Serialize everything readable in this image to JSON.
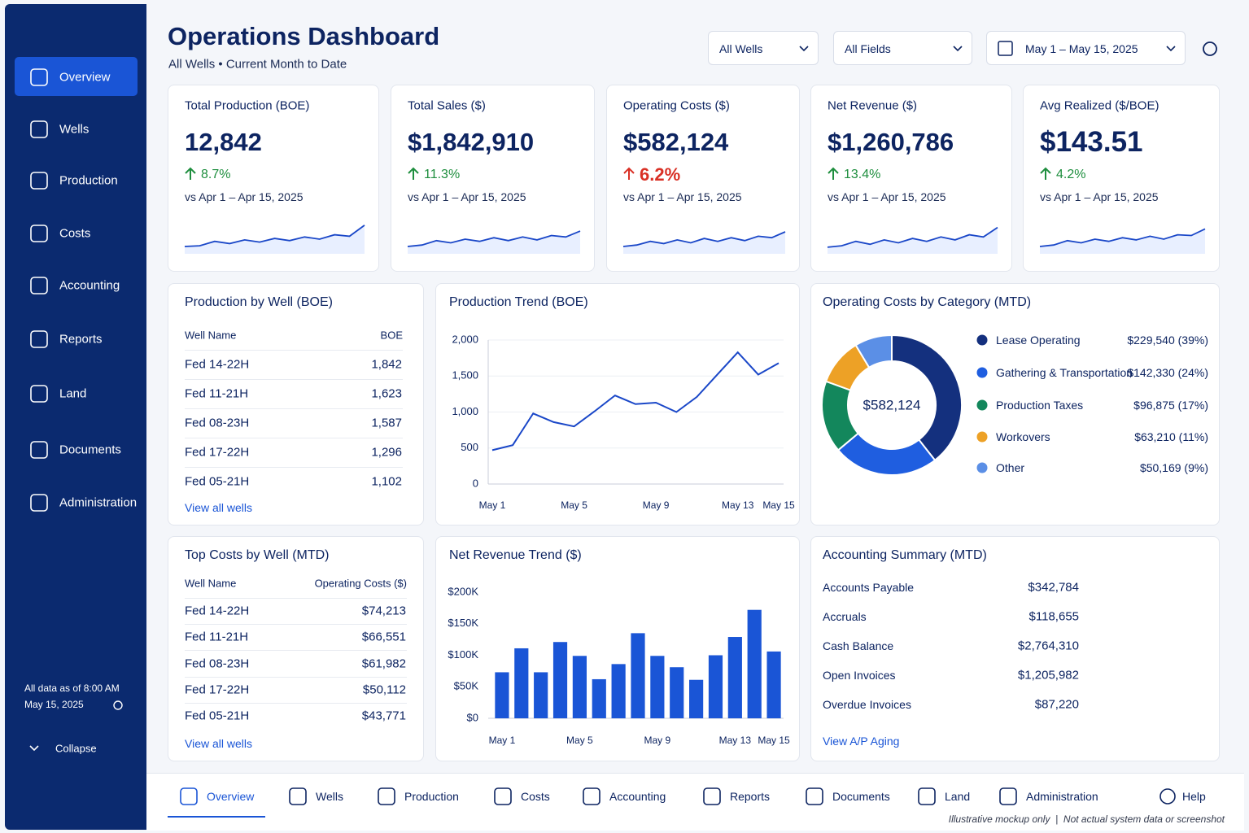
{
  "sidebar": {
    "nav": [
      "Overview",
      "Wells",
      "Production",
      "Costs",
      "Accounting",
      "Reports",
      "Land",
      "Documents",
      "Administration"
    ],
    "status": [
      "All data as of 8:00 AM",
      "May 15, 2025"
    ],
    "collapse": "Collapse"
  },
  "header": {
    "title": "Operations Dashboard",
    "subtitle": "All Wells • Current Month to Date",
    "filters": [
      "All Wells",
      "All Fields",
      "May 1 – May 15, 2025"
    ]
  },
  "kpis": [
    {
      "label": "Total Production (BOE)",
      "value": "12,842",
      "change": "8.7%",
      "change_color": "#1e8e3e",
      "comparison": "vs Apr 1 – Apr 15, 2025",
      "spark": [
        20,
        22,
        34,
        28,
        38,
        32,
        42,
        36,
        46,
        40,
        52,
        48,
        78
      ]
    },
    {
      "label": "Total Sales ($)",
      "value": "$1,842,910",
      "change": "11.3%",
      "change_color": "#1e8e3e",
      "comparison": "vs Apr 1 – Apr 15, 2025",
      "spark": [
        20,
        24,
        36,
        30,
        40,
        34,
        44,
        36,
        46,
        38,
        50,
        46,
        62
      ]
    },
    {
      "label": "Operating Costs ($)",
      "value": "$582,124",
      "change": "6.2%",
      "change_color": "#d93025",
      "comparison": "vs Apr 1 – Apr 15, 2025",
      "spark": [
        20,
        24,
        34,
        28,
        38,
        30,
        42,
        34,
        44,
        36,
        48,
        44,
        60
      ]
    },
    {
      "label": "Net Revenue ($)",
      "value": "$1,260,786",
      "change": "13.4%",
      "change_color": "#1e8e3e",
      "comparison": "vs Apr 1 – Apr 15, 2025",
      "spark": [
        18,
        22,
        34,
        26,
        38,
        30,
        42,
        34,
        46,
        38,
        52,
        46,
        72
      ]
    },
    {
      "label": "Avg Realized ($/BOE)",
      "value": "$143.51",
      "change": "4.2%",
      "change_color": "#1e8e3e",
      "comparison": "vs Apr 1 – Apr 15, 2025",
      "spark": [
        20,
        24,
        36,
        30,
        40,
        34,
        44,
        38,
        48,
        40,
        52,
        50,
        68
      ]
    }
  ],
  "production_by_well": {
    "title": "Production by Well (BOE)",
    "columns": [
      "Well Name",
      "BOE"
    ],
    "rows": [
      [
        "Fed 14-22H",
        "1,842"
      ],
      [
        "Fed 11-21H",
        "1,623"
      ],
      [
        "Fed 08-23H",
        "1,587"
      ],
      [
        "Fed 17-22H",
        "1,296"
      ],
      [
        "Fed 05-21H",
        "1,102"
      ]
    ],
    "link": "View all wells"
  },
  "top_costs": {
    "title": "Top Costs by Well (MTD)",
    "columns": [
      "Well Name",
      "Operating Costs ($)"
    ],
    "rows": [
      [
        "Fed 14-22H",
        "$74,213"
      ],
      [
        "Fed 11-21H",
        "$66,551"
      ],
      [
        "Fed 08-23H",
        "$61,982"
      ],
      [
        "Fed 17-22H",
        "$50,112"
      ],
      [
        "Fed 05-21H",
        "$43,771"
      ]
    ],
    "link": "View all wells"
  },
  "accounting_summary": {
    "title": "Accounting Summary (MTD)",
    "rows": [
      [
        "Accounts Payable",
        "$342,784"
      ],
      [
        "Accruals",
        "$118,655"
      ],
      [
        "Cash Balance",
        "$2,764,310"
      ],
      [
        "Open Invoices",
        "$1,205,982"
      ],
      [
        "Overdue Invoices",
        "$87,220"
      ]
    ],
    "link": "View A/P Aging"
  },
  "chart_data": [
    {
      "type": "line",
      "title": "Production Trend (BOE)",
      "color": "#1a47c8",
      "grid": true,
      "categories": [
        "May 1",
        null,
        null,
        null,
        "May 5",
        null,
        null,
        null,
        "May 9",
        null,
        null,
        null,
        "May 13",
        null,
        "May 15"
      ],
      "values": [
        470,
        540,
        980,
        860,
        800,
        1010,
        1230,
        1110,
        1130,
        1000,
        1210,
        1520,
        1830,
        1520,
        1680
      ],
      "ylim": [
        0,
        2000
      ],
      "yticks": [
        0,
        500,
        {
          "value": 1000,
          "label": "1,000"
        },
        {
          "value": 1500,
          "label": "1,500"
        },
        {
          "value": 2000,
          "label": "2,000"
        }
      ]
    },
    {
      "type": "bar",
      "title": "Net Revenue Trend ($)",
      "color": "#1a55d6",
      "grid": false,
      "categories": [
        "May 1",
        null,
        null,
        null,
        "May 5",
        null,
        null,
        null,
        "May 9",
        null,
        null,
        null,
        "May 13",
        null,
        "May 15"
      ],
      "values": [
        73000,
        111000,
        73000,
        121000,
        99000,
        62000,
        86000,
        135000,
        99000,
        81000,
        61000,
        100000,
        129000,
        172000,
        106000
      ],
      "ylim": [
        0,
        200000
      ],
      "yticks": [
        {
          "value": 0,
          "label": "$0"
        },
        {
          "value": 50000,
          "label": "$50K"
        },
        {
          "value": 100000,
          "label": "$100K"
        },
        {
          "value": 150000,
          "label": "$150K"
        },
        {
          "value": 200000,
          "label": "$200K"
        }
      ]
    },
    {
      "type": "pie",
      "title": "Operating Costs by Category (MTD)",
      "center_label": "$582,124",
      "categories": [
        "Lease Operating",
        "Gathering & Transportation",
        "Production Taxes",
        "Workovers",
        "Other"
      ],
      "values": [
        229540,
        142330,
        96875,
        63210,
        50169
      ],
      "value_labels": [
        "$229,540 (39%)",
        "$142,330 (24%)",
        "$96,875 (17%)",
        "$63,210 (11%)",
        "$50,169 (9%)"
      ],
      "colors": [
        "#14307e",
        "#1f5ee0",
        "#13875c",
        "#eda126",
        "#5b8fe6"
      ]
    }
  ],
  "bottom_nav": {
    "items": [
      "Overview",
      "Wells",
      "Production",
      "Costs",
      "Accounting",
      "Reports",
      "Documents",
      "Land",
      "Administration"
    ],
    "help": "Help",
    "note": "Illustrative mockup only  |  Not actual system data or screenshot"
  }
}
